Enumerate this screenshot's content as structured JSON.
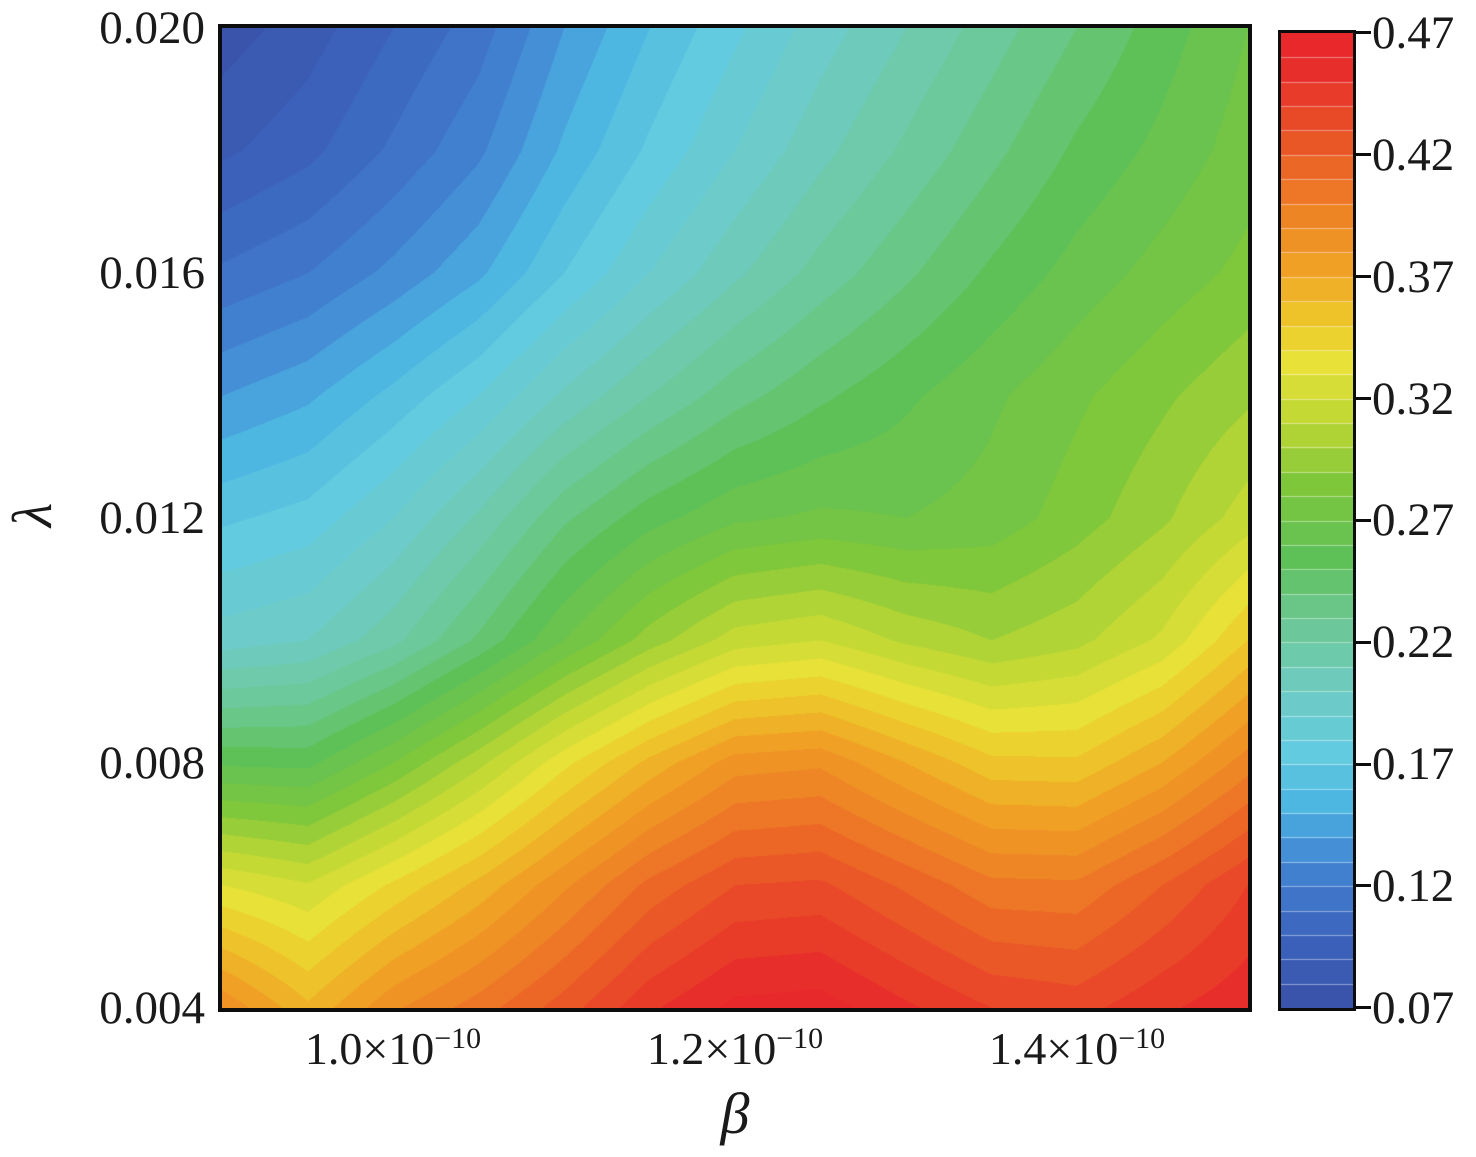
{
  "chart_data": {
    "type": "heatmap",
    "style": "filled-contour",
    "title": "",
    "xlabel": "β",
    "ylabel": "λ",
    "x_ticks": [
      {
        "base": "1.0×10",
        "exp": "−10",
        "value": 1e-10
      },
      {
        "base": "1.2×10",
        "exp": "−10",
        "value": 1.2e-10
      },
      {
        "base": "1.4×10",
        "exp": "−10",
        "value": 1.4e-10
      }
    ],
    "y_ticks": [
      "0.020",
      "0.016",
      "0.012",
      "0.008",
      "0.004"
    ],
    "y_tick_values": [
      0.02,
      0.016,
      0.012,
      0.008,
      0.004
    ],
    "x_range": [
      9e-11,
      1.5e-10
    ],
    "y_range": [
      0.004,
      0.02
    ],
    "x_grid_scale": 1e-10,
    "x_grid": [
      0.9,
      0.95,
      1.0,
      1.05,
      1.1,
      1.15,
      1.2,
      1.25,
      1.3,
      1.35,
      1.4,
      1.45,
      1.5
    ],
    "y_grid_top_to_bottom": [
      0.02,
      0.018,
      0.016,
      0.014,
      0.012,
      0.01,
      0.008,
      0.006,
      0.004
    ],
    "z_rows_top_to_bottom": [
      [
        0.075,
        0.085,
        0.1,
        0.115,
        0.14,
        0.16,
        0.178,
        0.195,
        0.21,
        0.225,
        0.24,
        0.255,
        0.27
      ],
      [
        0.088,
        0.097,
        0.112,
        0.128,
        0.152,
        0.172,
        0.19,
        0.207,
        0.222,
        0.237,
        0.252,
        0.263,
        0.275
      ],
      [
        0.112,
        0.12,
        0.133,
        0.148,
        0.17,
        0.19,
        0.208,
        0.224,
        0.238,
        0.252,
        0.264,
        0.274,
        0.283
      ],
      [
        0.14,
        0.148,
        0.163,
        0.18,
        0.202,
        0.22,
        0.236,
        0.248,
        0.258,
        0.268,
        0.278,
        0.288,
        0.298
      ],
      [
        0.168,
        0.174,
        0.19,
        0.212,
        0.238,
        0.256,
        0.268,
        0.272,
        0.27,
        0.274,
        0.285,
        0.298,
        0.315
      ],
      [
        0.195,
        0.2,
        0.217,
        0.242,
        0.27,
        0.295,
        0.315,
        0.32,
        0.308,
        0.3,
        0.307,
        0.322,
        0.35
      ],
      [
        0.258,
        0.257,
        0.28,
        0.307,
        0.337,
        0.363,
        0.385,
        0.388,
        0.37,
        0.353,
        0.352,
        0.37,
        0.395
      ],
      [
        0.33,
        0.321,
        0.342,
        0.363,
        0.388,
        0.413,
        0.43,
        0.432,
        0.418,
        0.403,
        0.402,
        0.42,
        0.44
      ],
      [
        0.388,
        0.362,
        0.388,
        0.405,
        0.425,
        0.448,
        0.463,
        0.465,
        0.452,
        0.44,
        0.436,
        0.448,
        0.457
      ]
    ],
    "levels": {
      "min": 0.07,
      "max": 0.47,
      "step": 0.01
    },
    "colorbar": {
      "position": "right",
      "tick_labels": [
        "0.47",
        "0.42",
        "0.37",
        "0.32",
        "0.27",
        "0.22",
        "0.17",
        "0.12",
        "0.07"
      ],
      "tick_values": [
        0.47,
        0.42,
        0.37,
        0.32,
        0.27,
        0.22,
        0.17,
        0.12,
        0.07
      ]
    },
    "colormap_stops": [
      {
        "v": 0.07,
        "c": "#3a51a8"
      },
      {
        "v": 0.1,
        "c": "#3c64bd"
      },
      {
        "v": 0.13,
        "c": "#4285d3"
      },
      {
        "v": 0.155,
        "c": "#4db7e2"
      },
      {
        "v": 0.175,
        "c": "#63cbdf"
      },
      {
        "v": 0.2,
        "c": "#6fccc3"
      },
      {
        "v": 0.23,
        "c": "#6cc893"
      },
      {
        "v": 0.255,
        "c": "#5ec158"
      },
      {
        "v": 0.285,
        "c": "#7fc73b"
      },
      {
        "v": 0.31,
        "c": "#bcd734"
      },
      {
        "v": 0.335,
        "c": "#e7e138"
      },
      {
        "v": 0.35,
        "c": "#eecb2b"
      },
      {
        "v": 0.375,
        "c": "#f0a025"
      },
      {
        "v": 0.4,
        "c": "#ee7f26"
      },
      {
        "v": 0.43,
        "c": "#e95027"
      },
      {
        "v": 0.455,
        "c": "#e82e2b"
      },
      {
        "v": 0.47,
        "c": "#e8262c"
      }
    ],
    "grid": false,
    "legend": false
  }
}
